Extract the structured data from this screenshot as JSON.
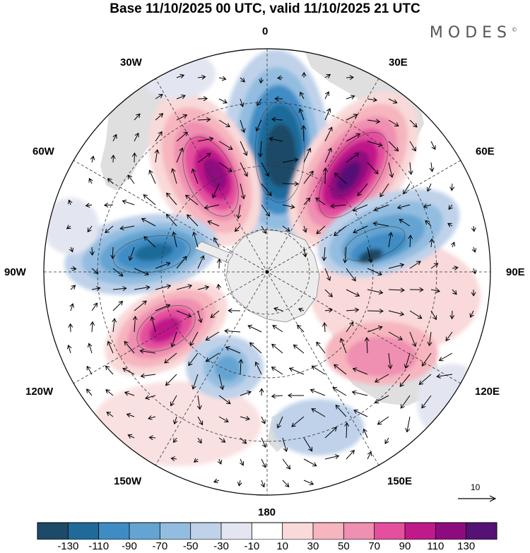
{
  "title": "Base 11/10/2025 00 UTC, valid 11/10/2025 21 UTC",
  "brand": "MODES",
  "brand_mark": "©",
  "longitude_labels": [
    "0",
    "30E",
    "60E",
    "90E",
    "120E",
    "150E",
    "180",
    "150W",
    "120W",
    "90W",
    "60W",
    "30W"
  ],
  "reference_vector": {
    "label": "10",
    "value": 10
  },
  "colorbar": {
    "ticks": [
      "-130",
      "-110",
      "-90",
      "-70",
      "-50",
      "-30",
      "-10",
      "10",
      "30",
      "50",
      "70",
      "90",
      "110",
      "130"
    ],
    "colors": [
      "#1d4a66",
      "#1f6a99",
      "#3f8cc4",
      "#65a4d2",
      "#93bde0",
      "#bfd2ea",
      "#e3e5f1",
      "#ffffff",
      "#f9d9d9",
      "#f6b5bf",
      "#ef8fb1",
      "#e4509d",
      "#c0198a",
      "#8e0b7f",
      "#561176"
    ]
  },
  "colors": {
    "land": "#d9d9d9",
    "antarctica": "#ececec",
    "coast": "#777777"
  }
}
